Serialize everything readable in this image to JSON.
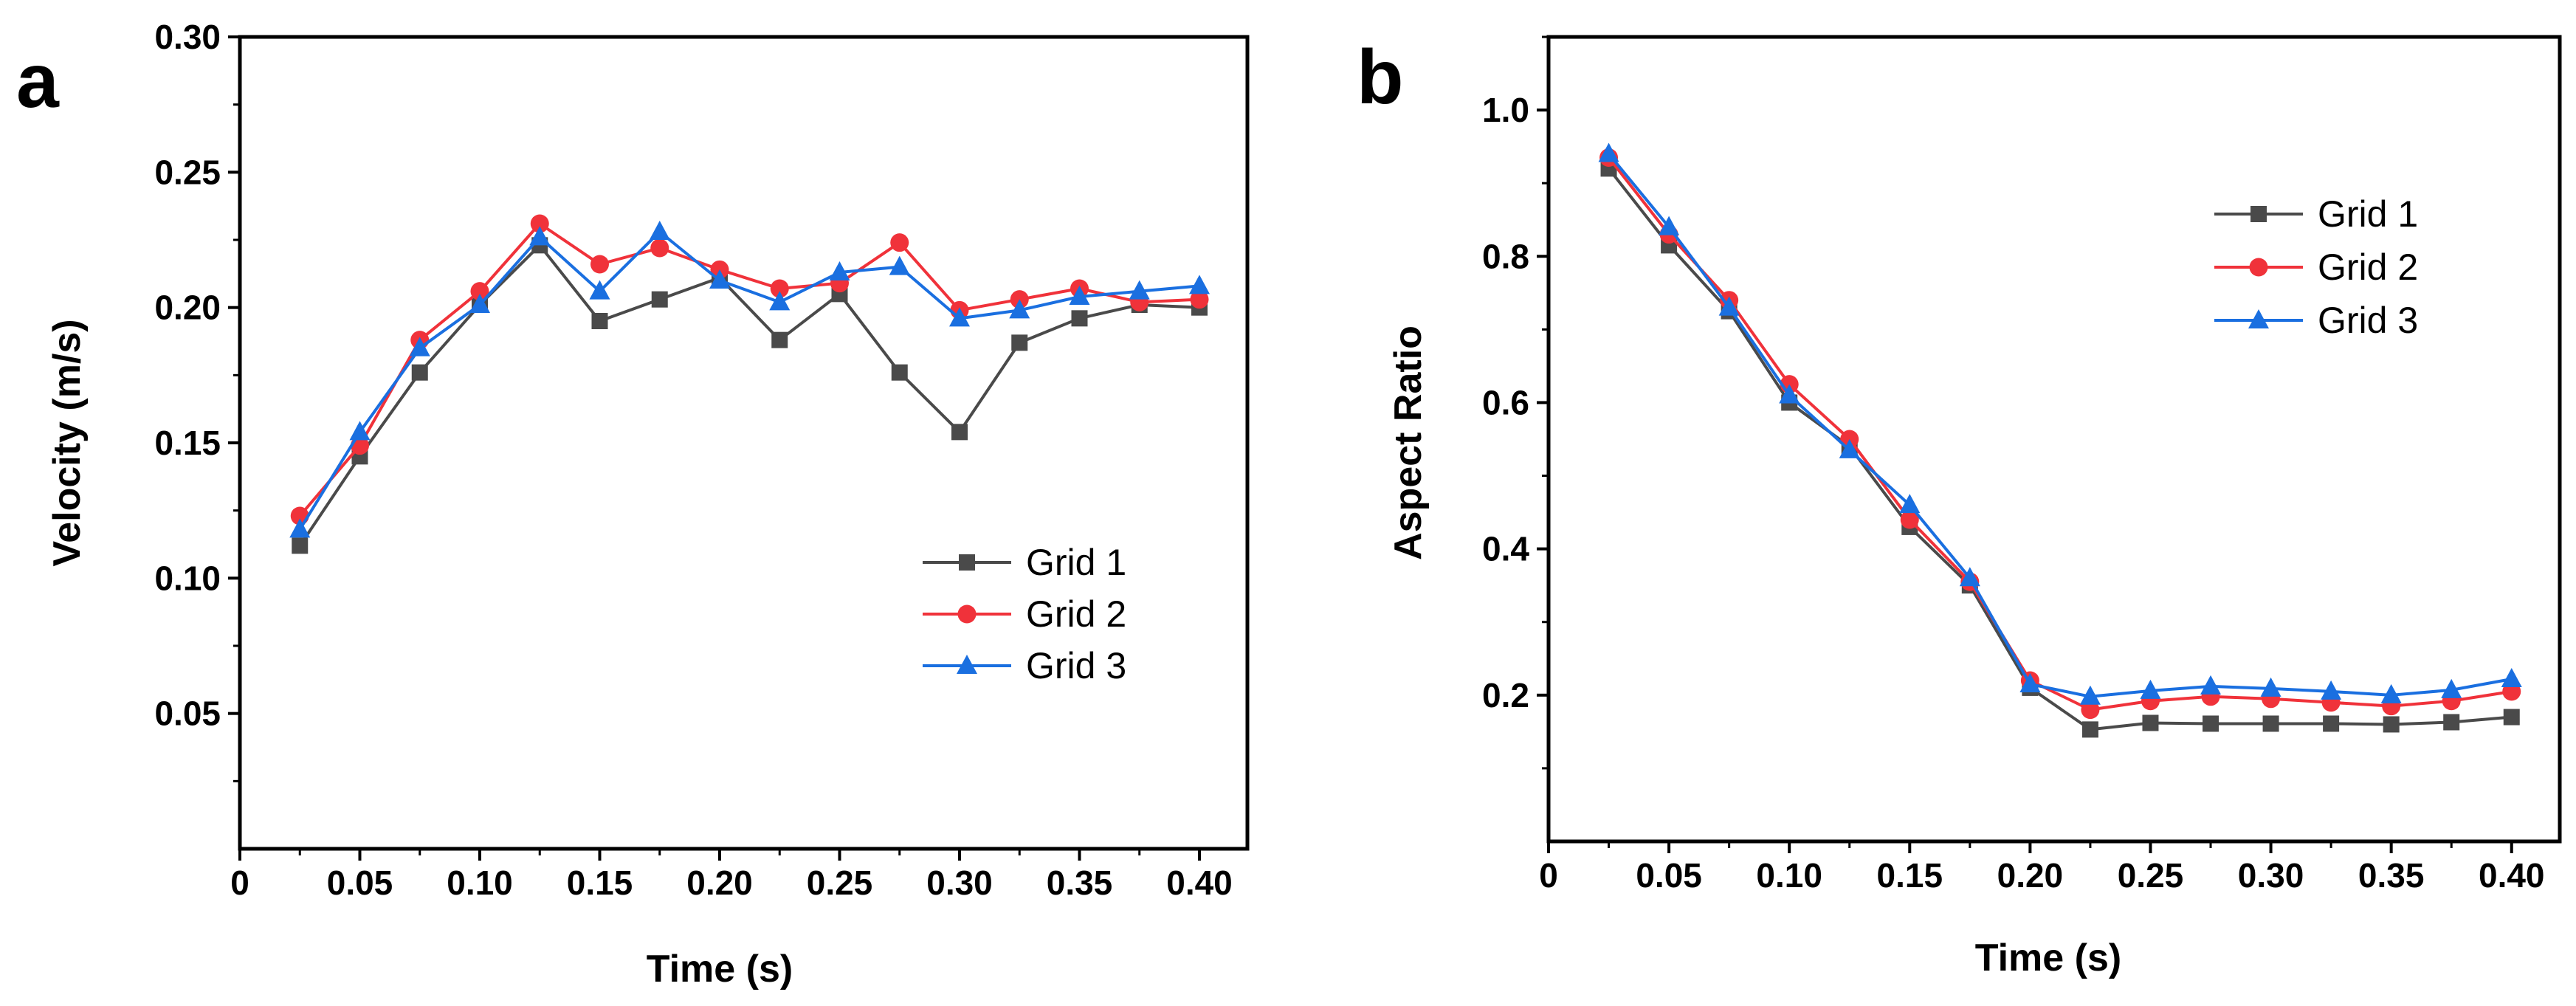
{
  "colors": {
    "grid1": "#4a4a4a",
    "grid2": "#f0323a",
    "grid3": "#1a6fe0",
    "axis": "#000000"
  },
  "chart_data": [
    {
      "panel": "a",
      "type": "line",
      "xlabel": "Time (s)",
      "ylabel": "Velocity (m/s)",
      "xlim": [
        0,
        0.42
      ],
      "ylim": [
        0,
        0.3
      ],
      "xticks": [
        {
          "v": 0,
          "label": "0"
        },
        {
          "v": 0.05,
          "label": "0.05"
        },
        {
          "v": 0.1,
          "label": "0.10"
        },
        {
          "v": 0.15,
          "label": "0.15"
        },
        {
          "v": 0.2,
          "label": "0.20"
        },
        {
          "v": 0.25,
          "label": "0.25"
        },
        {
          "v": 0.3,
          "label": "0.30"
        },
        {
          "v": 0.35,
          "label": "0.35"
        },
        {
          "v": 0.4,
          "label": "0.40"
        }
      ],
      "yticks": [
        {
          "v": 0.05,
          "label": "0.05"
        },
        {
          "v": 0.1,
          "label": "0.10"
        },
        {
          "v": 0.15,
          "label": "0.15"
        },
        {
          "v": 0.2,
          "label": "0.20"
        },
        {
          "v": 0.25,
          "label": "0.25"
        },
        {
          "v": 0.3,
          "label": "0.30"
        }
      ],
      "legend_position": "lower-right",
      "x": [
        0.025,
        0.05,
        0.075,
        0.1,
        0.125,
        0.15,
        0.175,
        0.2,
        0.225,
        0.25,
        0.275,
        0.3,
        0.325,
        0.35,
        0.375,
        0.4
      ],
      "series": [
        {
          "name": "Grid 1",
          "marker": "square",
          "color": "#4a4a4a",
          "values": [
            0.112,
            0.145,
            0.176,
            0.201,
            0.223,
            0.195,
            0.203,
            0.211,
            0.188,
            0.205,
            0.176,
            0.154,
            0.187,
            0.196,
            0.201,
            0.2
          ]
        },
        {
          "name": "Grid 2",
          "marker": "circle",
          "color": "#f0323a",
          "values": [
            0.123,
            0.149,
            0.188,
            0.206,
            0.231,
            0.216,
            0.222,
            0.214,
            0.207,
            0.209,
            0.224,
            0.199,
            0.203,
            0.207,
            0.202,
            0.203
          ]
        },
        {
          "name": "Grid 3",
          "marker": "triangle",
          "color": "#1a6fe0",
          "values": [
            0.118,
            0.154,
            0.185,
            0.201,
            0.226,
            0.206,
            0.228,
            0.21,
            0.202,
            0.213,
            0.215,
            0.196,
            0.199,
            0.204,
            0.206,
            0.208
          ]
        }
      ]
    },
    {
      "panel": "b",
      "type": "line",
      "xlabel": "Time (s)",
      "ylabel": "Aspect Ratio",
      "xlim": [
        0,
        0.42
      ],
      "ylim": [
        0,
        1.1
      ],
      "xticks": [
        {
          "v": 0,
          "label": "0"
        },
        {
          "v": 0.05,
          "label": "0.05"
        },
        {
          "v": 0.1,
          "label": "0.10"
        },
        {
          "v": 0.15,
          "label": "0.15"
        },
        {
          "v": 0.2,
          "label": "0.20"
        },
        {
          "v": 0.25,
          "label": "0.25"
        },
        {
          "v": 0.3,
          "label": "0.30"
        },
        {
          "v": 0.35,
          "label": "0.35"
        },
        {
          "v": 0.4,
          "label": "0.40"
        }
      ],
      "yticks": [
        {
          "v": 0.2,
          "label": "0.2"
        },
        {
          "v": 0.4,
          "label": "0.4"
        },
        {
          "v": 0.6,
          "label": "0.6"
        },
        {
          "v": 0.8,
          "label": "0.8"
        },
        {
          "v": 1.0,
          "label": "1.0"
        }
      ],
      "legend_position": "top-right",
      "x": [
        0.025,
        0.05,
        0.075,
        0.1,
        0.125,
        0.15,
        0.175,
        0.2,
        0.225,
        0.25,
        0.275,
        0.3,
        0.325,
        0.35,
        0.375,
        0.4
      ],
      "series": [
        {
          "name": "Grid 1",
          "marker": "square",
          "color": "#4a4a4a",
          "values": [
            0.92,
            0.815,
            0.725,
            0.6,
            0.54,
            0.43,
            0.35,
            0.21,
            0.153,
            0.162,
            0.161,
            0.161,
            0.161,
            0.16,
            0.163,
            0.17
          ]
        },
        {
          "name": "Grid 2",
          "marker": "circle",
          "color": "#f0323a",
          "values": [
            0.935,
            0.83,
            0.74,
            0.625,
            0.55,
            0.44,
            0.355,
            0.22,
            0.18,
            0.192,
            0.198,
            0.195,
            0.19,
            0.185,
            0.192,
            0.205
          ]
        },
        {
          "name": "Grid 3",
          "marker": "triangle",
          "color": "#1a6fe0",
          "values": [
            0.94,
            0.84,
            0.73,
            0.61,
            0.535,
            0.46,
            0.36,
            0.215,
            0.198,
            0.206,
            0.212,
            0.209,
            0.205,
            0.2,
            0.207,
            0.222
          ]
        }
      ]
    }
  ]
}
